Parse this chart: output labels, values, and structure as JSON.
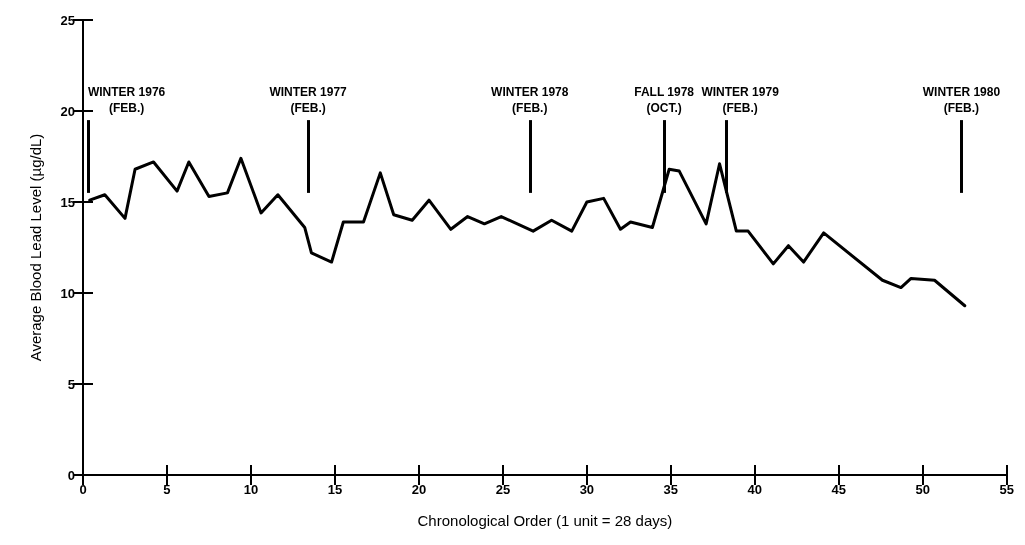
{
  "chart_data": {
    "type": "line",
    "xlabel": "Chronological Order (1 unit = 28 days)",
    "ylabel": "Average Blood Lead Level (µg/dL)",
    "series": [
      {
        "color": "#000000",
        "x": [
          0.4,
          1.3,
          2.5,
          3.1,
          4.2,
          5.6,
          6.3,
          7.5,
          8.6,
          9.4,
          10.6,
          11.6,
          13.2,
          13.6,
          14.8,
          15.5,
          16.7,
          17.7,
          18.5,
          19.6,
          20.6,
          21.9,
          22.9,
          23.9,
          24.9,
          26.8,
          27.9,
          29.1,
          30.0,
          31.0,
          32.0,
          32.6,
          33.9,
          34.9,
          35.5,
          37.1,
          37.9,
          38.9,
          39.6,
          41.1,
          42.0,
          42.9,
          44.1,
          47.6,
          48.7,
          49.3,
          50.7,
          52.5
        ],
        "values": [
          15.1,
          15.4,
          14.1,
          16.8,
          17.2,
          15.6,
          17.2,
          15.3,
          15.5,
          17.4,
          14.4,
          15.4,
          13.6,
          12.2,
          11.7,
          13.9,
          13.9,
          16.6,
          14.3,
          14.0,
          15.1,
          13.5,
          14.2,
          13.8,
          14.2,
          13.4,
          14.0,
          13.4,
          15.0,
          15.2,
          13.5,
          13.9,
          13.6,
          16.8,
          16.7,
          13.8,
          17.1,
          13.4,
          13.4,
          11.6,
          12.6,
          11.7,
          13.3,
          10.7,
          10.3,
          10.8,
          10.7,
          9.3
        ]
      }
    ],
    "xlim": [
      0,
      55
    ],
    "xticks": [
      0,
      5,
      10,
      15,
      20,
      25,
      30,
      35,
      40,
      45,
      50,
      55
    ],
    "ylim": [
      0,
      25
    ],
    "yticks": [
      0,
      5,
      10,
      15,
      20,
      25
    ],
    "grid": false,
    "marker": "none",
    "line_style": "solid",
    "ref_lines": [
      {
        "axis": "x",
        "value": 0.3,
        "label": "WINTER 1976\n(FEB.)"
      },
      {
        "axis": "x",
        "value": 13.4,
        "label": "WINTER 1977\n(FEB.)"
      },
      {
        "axis": "x",
        "value": 26.6,
        "label": "WINTER 1978\n(FEB.)"
      },
      {
        "axis": "x",
        "value": 34.6,
        "label": "FALL 1978\n(OCT.)"
      },
      {
        "axis": "x",
        "value": 38.3,
        "label": "WINTER 1979\n(FEB.)"
      },
      {
        "axis": "x",
        "value": 52.3,
        "label": "WINTER 1980\n(FEB.)"
      }
    ]
  }
}
